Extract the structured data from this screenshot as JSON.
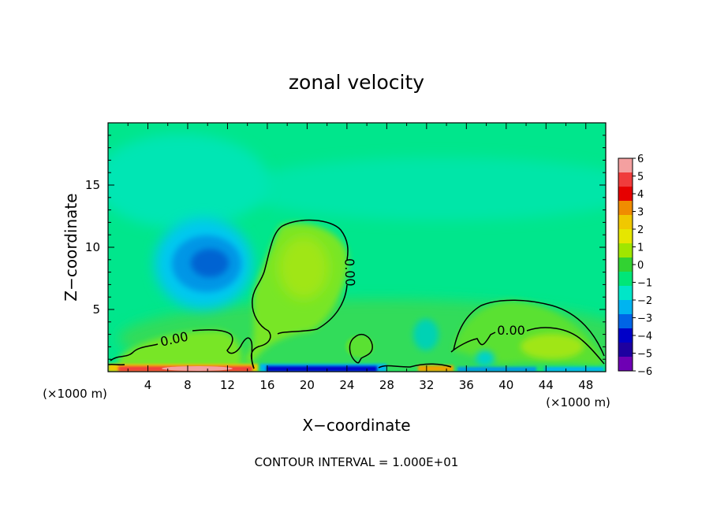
{
  "chart_data": {
    "type": "heatmap",
    "title": "zonal velocity",
    "xlabel": "X−coordinate",
    "ylabel": "Z−coordinate",
    "x_unit_left": "(×1000 m)",
    "x_unit_right": "(×1000 m)",
    "footer": "CONTOUR INTERVAL = 1.000E+01",
    "xlim": [
      0,
      50
    ],
    "ylim": [
      0,
      20
    ],
    "x_ticks": [
      4,
      8,
      12,
      16,
      20,
      24,
      28,
      32,
      36,
      40,
      44,
      48
    ],
    "y_ticks": [
      5,
      10,
      15
    ],
    "contour_labels": [
      "0.00",
      "0.00",
      "0.00"
    ],
    "colorbar": {
      "labels": [
        "6",
        "5",
        "4",
        "3",
        "2",
        "1",
        "0",
        "−1",
        "−2",
        "−3",
        "−4",
        "−5",
        "−6"
      ],
      "colors": [
        "#f4a0a0",
        "#f03c3c",
        "#e60000",
        "#f08c00",
        "#f0c800",
        "#e6e600",
        "#a0e600",
        "#32d232",
        "#00e678",
        "#00e6c8",
        "#00b4f0",
        "#0064e6",
        "#0000c8",
        "#1e00a0",
        "#6e00b4"
      ]
    },
    "background_color": "#00e68c"
  }
}
